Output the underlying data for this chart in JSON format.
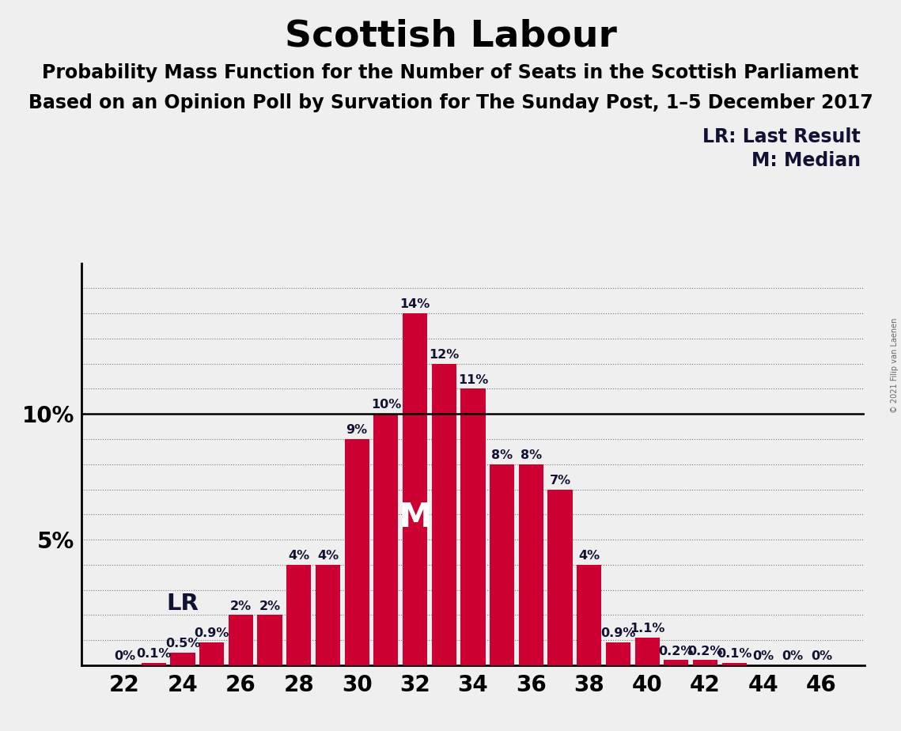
{
  "title": "Scottish Labour",
  "subtitle1": "Probability Mass Function for the Number of Seats in the Scottish Parliament",
  "subtitle2": "Based on an Opinion Poll by Survation for The Sunday Post, 1–5 December 2017",
  "copyright": "© 2021 Filip van Laenen",
  "seats": [
    22,
    23,
    24,
    25,
    26,
    27,
    28,
    29,
    30,
    31,
    32,
    33,
    34,
    35,
    36,
    37,
    38,
    39,
    40,
    41,
    42,
    43,
    44,
    45,
    46
  ],
  "probabilities": [
    0.0,
    0.1,
    0.5,
    0.9,
    2.0,
    2.0,
    4.0,
    4.0,
    9.0,
    10.0,
    14.0,
    12.0,
    11.0,
    8.0,
    8.0,
    7.0,
    4.0,
    0.9,
    1.1,
    0.2,
    0.2,
    0.1,
    0.0,
    0.0,
    0.0
  ],
  "labels": [
    "0%",
    "0.1%",
    "0.5%",
    "0.9%",
    "2%",
    "2%",
    "4%",
    "4%",
    "9%",
    "10%",
    "14%",
    "12%",
    "11%",
    "8%",
    "8%",
    "7%",
    "4%",
    "0.9%",
    "1.1%",
    "0.2%",
    "0.2%",
    "0.1%",
    "0%",
    "0%",
    "0%"
  ],
  "bar_color": "#CC0033",
  "background_color": "#efefef",
  "median_seat": 32,
  "last_result_seat": 24,
  "legend_lr": "LR: Last Result",
  "legend_m": "M: Median",
  "ylim": [
    0,
    16
  ],
  "xtick_seats": [
    22,
    24,
    26,
    28,
    30,
    32,
    34,
    36,
    38,
    40,
    42,
    44,
    46
  ],
  "title_fontsize": 34,
  "subtitle_fontsize": 17,
  "label_fontsize": 11.5,
  "axis_fontsize": 20,
  "legend_fontsize": 17
}
